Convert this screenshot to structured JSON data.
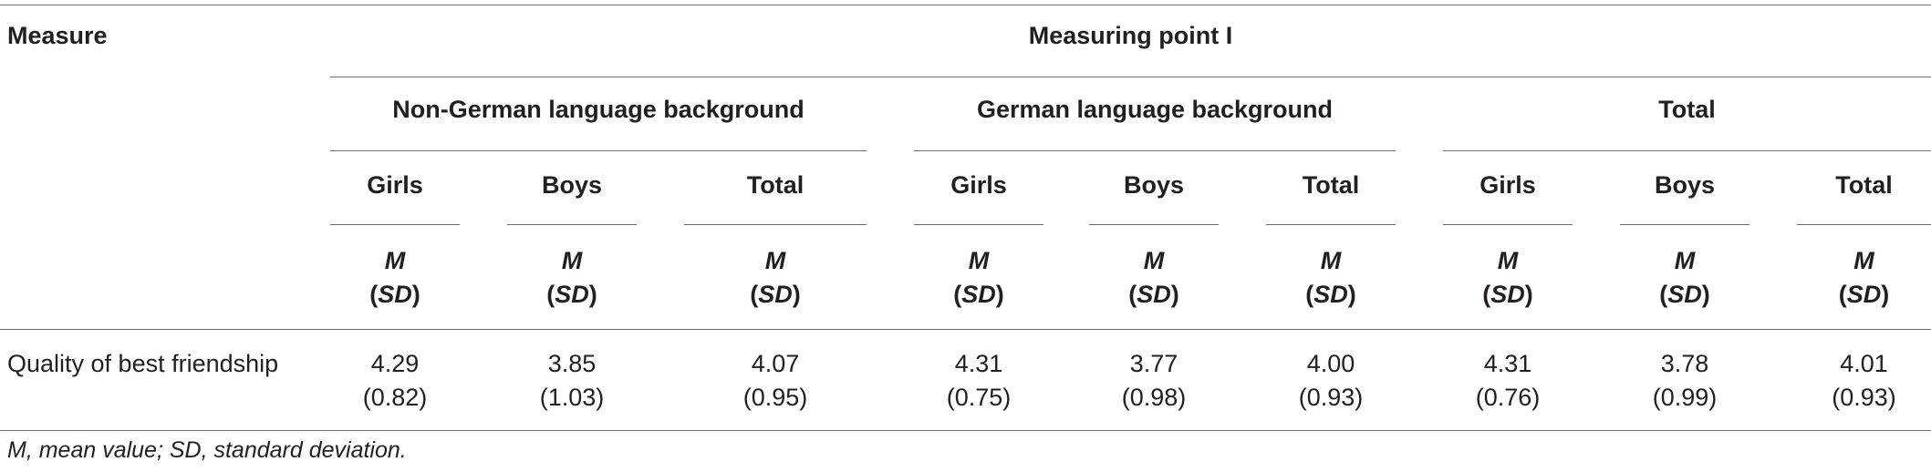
{
  "table": {
    "measure_header": "Measure",
    "top_header": "Measuring point I",
    "groups": [
      "Non-German language background",
      "German language background",
      "Total"
    ],
    "subgroups": [
      "Girls",
      "Boys",
      "Total"
    ],
    "stat_m": "M",
    "stat_sd": "SD",
    "rows": [
      {
        "label": "Quality of best friendship",
        "means": [
          "4.29",
          "3.85",
          "4.07",
          "4.31",
          "3.77",
          "4.00",
          "4.31",
          "3.78",
          "4.01"
        ],
        "sds": [
          "(0.82)",
          "(1.03)",
          "(0.95)",
          "(0.75)",
          "(0.98)",
          "(0.93)",
          "(0.76)",
          "(0.99)",
          "(0.93)"
        ]
      }
    ]
  },
  "footnote": "M, mean value; SD, standard deviation."
}
